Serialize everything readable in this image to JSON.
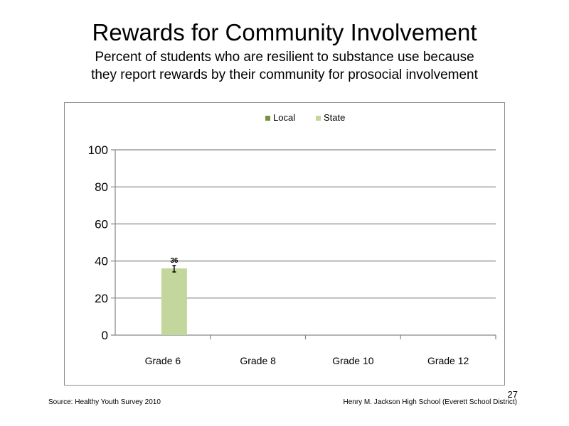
{
  "slide": {
    "title": "Rewards for Community Involvement",
    "subtitle_line1": "Percent of students who are resilient to substance use because",
    "subtitle_line2": "they report rewards by their community for prosocial involvement",
    "source": "Source: Healthy Youth Survey 2010",
    "school": "Henry M. Jackson High School (Everett School District)",
    "page_number": "27"
  },
  "colors": {
    "local": "#77933C",
    "state": "#C3D69B",
    "gridline": "#868686",
    "frame": "#8C8C8C"
  },
  "chart_data": {
    "type": "bar",
    "categories": [
      "Grade 6",
      "Grade 8",
      "Grade 10",
      "Grade 12"
    ],
    "series": [
      {
        "name": "Local",
        "values": [
          null,
          null,
          null,
          null
        ]
      },
      {
        "name": "State",
        "values": [
          36,
          null,
          null,
          null
        ]
      }
    ],
    "data_labels": {
      "State": [
        "36",
        null,
        null,
        null
      ]
    },
    "error_bars": {
      "State": [
        true,
        false,
        false,
        false
      ]
    },
    "yticks": [
      "0",
      "20",
      "40",
      "60",
      "80",
      "100"
    ],
    "ylim": [
      0,
      100
    ],
    "grid": true,
    "legend_position": "top",
    "title": "",
    "xlabel": "",
    "ylabel": ""
  }
}
